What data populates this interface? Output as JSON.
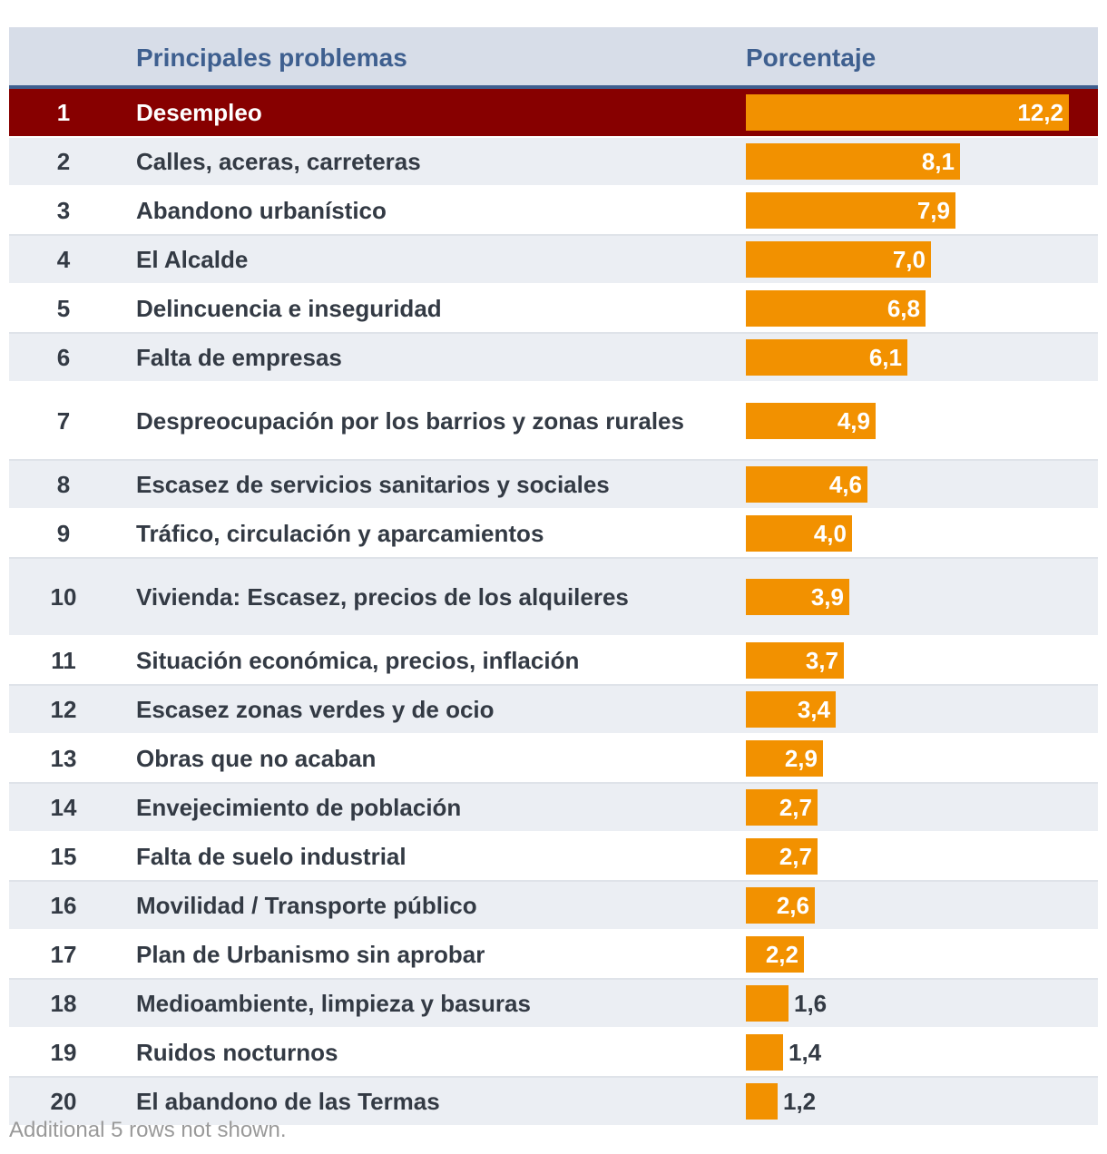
{
  "header": {
    "problem_label": "Principales problemas",
    "percent_label": "Porcentaje"
  },
  "footer_note": "Additional 5 rows not shown.",
  "colors": {
    "bar": "#f29100",
    "highlight_row": "#870000",
    "header_bg": "#d7dde8",
    "header_text": "#3e5f8f"
  },
  "chart_data": {
    "type": "bar",
    "orientation": "horizontal",
    "title": "",
    "xlabel": "",
    "ylabel": "",
    "xlim": [
      0,
      12.2
    ],
    "highlighted_rank": "1",
    "rows": [
      {
        "rank": "1",
        "problem": "Desempleo",
        "value": 12.2,
        "display": "12,2"
      },
      {
        "rank": "2",
        "problem": "Calles, aceras, carreteras",
        "value": 8.1,
        "display": "8,1"
      },
      {
        "rank": "3",
        "problem": "Abandono urbanístico",
        "value": 7.9,
        "display": "7,9"
      },
      {
        "rank": "4",
        "problem": "El Alcalde",
        "value": 7.0,
        "display": "7,0"
      },
      {
        "rank": "5",
        "problem": "Delincuencia e inseguridad",
        "value": 6.8,
        "display": "6,8"
      },
      {
        "rank": "6",
        "problem": "Falta de empresas",
        "value": 6.1,
        "display": "6,1"
      },
      {
        "rank": "7",
        "problem": "Despreocupación por los barrios y zonas rurales",
        "value": 4.9,
        "display": "4,9"
      },
      {
        "rank": "8",
        "problem": "Escasez de servicios sanitarios y sociales",
        "value": 4.6,
        "display": "4,6"
      },
      {
        "rank": "9",
        "problem": "Tráfico, circulación y aparcamientos",
        "value": 4.0,
        "display": "4,0"
      },
      {
        "rank": "10",
        "problem": "Vivienda: Escasez, precios de los alquileres",
        "value": 3.9,
        "display": "3,9"
      },
      {
        "rank": "11",
        "problem": "Situación económica, precios, inflación",
        "value": 3.7,
        "display": "3,7"
      },
      {
        "rank": "12",
        "problem": "Escasez zonas verdes y de ocio",
        "value": 3.4,
        "display": "3,4"
      },
      {
        "rank": "13",
        "problem": "Obras que no acaban",
        "value": 2.9,
        "display": "2,9"
      },
      {
        "rank": "14",
        "problem": "Envejecimiento de población",
        "value": 2.7,
        "display": "2,7"
      },
      {
        "rank": "15",
        "problem": "Falta de suelo industrial",
        "value": 2.7,
        "display": "2,7"
      },
      {
        "rank": "16",
        "problem": "Movilidad / Transporte público",
        "value": 2.6,
        "display": "2,6"
      },
      {
        "rank": "17",
        "problem": "Plan de Urbanismo sin aprobar",
        "value": 2.2,
        "display": "2,2"
      },
      {
        "rank": "18",
        "problem": "Medioambiente, limpieza y basuras",
        "value": 1.6,
        "display": "1,6"
      },
      {
        "rank": "19",
        "problem": "Ruidos nocturnos",
        "value": 1.4,
        "display": "1,4"
      },
      {
        "rank": "20",
        "problem": "El abandono de las Termas",
        "value": 1.2,
        "display": "1,2"
      }
    ]
  }
}
